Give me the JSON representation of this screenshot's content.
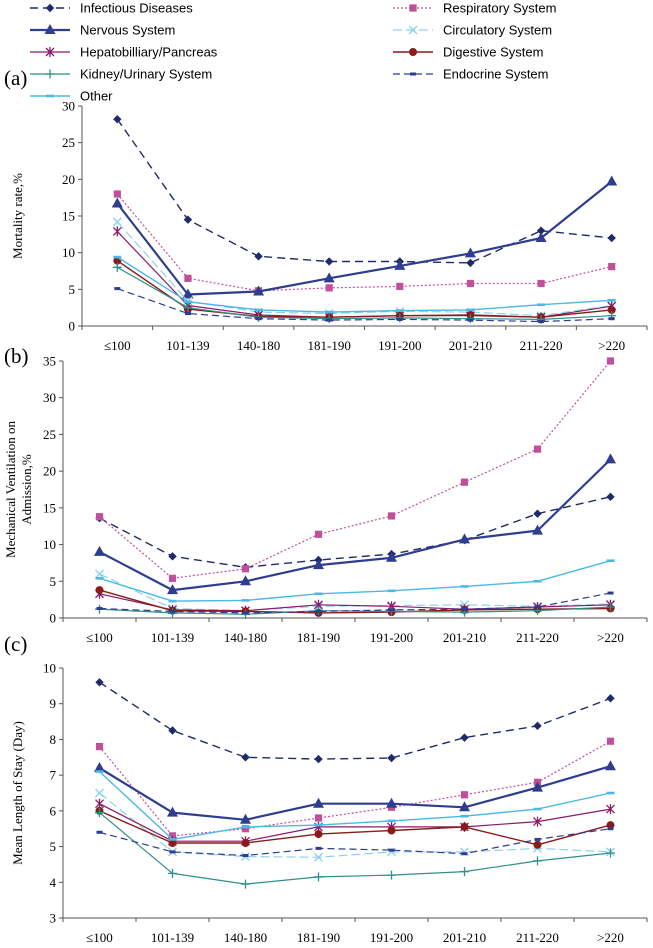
{
  "legend": [
    {
      "key": "infectious",
      "label": "Infectious Diseases"
    },
    {
      "key": "respiratory",
      "label": "Respiratory System"
    },
    {
      "key": "nervous",
      "label": "Nervous System"
    },
    {
      "key": "circulatory",
      "label": "Circulatory System"
    },
    {
      "key": "hepato",
      "label": "Hepatobilliary/Pancreas"
    },
    {
      "key": "digestive",
      "label": "Digestive System"
    },
    {
      "key": "kidney",
      "label": "Kidney/Urinary System"
    },
    {
      "key": "endocrine",
      "label": "Endocrine System"
    },
    {
      "key": "other",
      "label": "Other"
    }
  ],
  "series_styles": {
    "infectious": {
      "color": "#1f2a6b",
      "dash": "8,5",
      "marker": "diamond",
      "width": 1.4
    },
    "respiratory": {
      "color": "#c0509a",
      "dash": "2,2",
      "marker": "square",
      "width": 1.2
    },
    "nervous": {
      "color": "#2e3d8f",
      "dash": "",
      "marker": "triangle",
      "width": 2.2
    },
    "circulatory": {
      "color": "#8fd2e8",
      "dash": "9,4",
      "marker": "x",
      "width": 1.2
    },
    "hepato": {
      "color": "#8b1a6b",
      "dash": "",
      "marker": "star",
      "width": 1.2
    },
    "digestive": {
      "color": "#8b1a1a",
      "dash": "",
      "marker": "circle",
      "width": 1.4
    },
    "kidney": {
      "color": "#2f8f8a",
      "dash": "",
      "marker": "plus",
      "width": 1.2
    },
    "endocrine": {
      "color": "#2e3d8f",
      "dash": "7,4",
      "marker": "dash",
      "width": 1.2
    },
    "other": {
      "color": "#4bb8e6",
      "dash": "",
      "marker": "hbar",
      "width": 1.4
    }
  },
  "chart_data": [
    {
      "type": "line",
      "panel_label": "(a)",
      "ylabel": "Mortality rate,%",
      "categories": [
        "≤100",
        "101-139",
        "140-180",
        "181-190",
        "191-200",
        "201-210",
        "211-220",
        ">220"
      ],
      "ylim": [
        0,
        30
      ],
      "yticks": [
        0,
        5,
        10,
        15,
        20,
        25,
        30
      ],
      "series": [
        {
          "key": "infectious",
          "values": [
            28.2,
            14.5,
            9.5,
            8.8,
            8.8,
            8.6,
            13.0,
            12.0
          ]
        },
        {
          "key": "respiratory",
          "values": [
            18.0,
            6.5,
            4.8,
            5.2,
            5.4,
            5.8,
            5.8,
            8.1
          ]
        },
        {
          "key": "nervous",
          "values": [
            16.7,
            4.3,
            4.7,
            6.5,
            8.2,
            9.9,
            12.0,
            19.7
          ]
        },
        {
          "key": "circulatory",
          "values": [
            14.2,
            3.4,
            1.9,
            1.7,
            2.0,
            1.9,
            1.4,
            2.8
          ]
        },
        {
          "key": "hepato",
          "values": [
            12.9,
            2.8,
            1.5,
            1.2,
            1.4,
            1.4,
            1.2,
            2.7
          ]
        },
        {
          "key": "digestive",
          "values": [
            8.9,
            2.3,
            1.3,
            1.2,
            1.4,
            1.5,
            1.2,
            2.2
          ]
        },
        {
          "key": "kidney",
          "values": [
            8.0,
            2.5,
            1.2,
            1.0,
            1.1,
            1.0,
            0.9,
            1.4
          ]
        },
        {
          "key": "endocrine",
          "values": [
            5.1,
            1.7,
            1.0,
            0.8,
            0.9,
            0.8,
            0.6,
            1.0
          ]
        },
        {
          "key": "other",
          "values": [
            9.4,
            3.3,
            2.2,
            1.9,
            2.1,
            2.2,
            2.9,
            3.5
          ]
        }
      ]
    },
    {
      "type": "line",
      "panel_label": "(b)",
      "ylabel": "Mechanical Ventilation on Admission,%",
      "ylabel_lines": [
        "Mechanical Ventilation on",
        "Admission,%"
      ],
      "categories": [
        "≤100",
        "101-139",
        "140-180",
        "181-190",
        "191-200",
        "201-210",
        "211-220",
        ">220"
      ],
      "ylim": [
        0,
        35
      ],
      "yticks": [
        0,
        5,
        10,
        15,
        20,
        25,
        30,
        35
      ],
      "series": [
        {
          "key": "infectious",
          "values": [
            13.6,
            8.4,
            6.9,
            7.9,
            8.7,
            10.6,
            14.2,
            16.5
          ]
        },
        {
          "key": "respiratory",
          "values": [
            13.8,
            5.4,
            6.7,
            11.4,
            13.9,
            18.5,
            23.0,
            35.0
          ]
        },
        {
          "key": "nervous",
          "values": [
            9.0,
            3.8,
            5.0,
            7.2,
            8.2,
            10.7,
            11.9,
            21.6
          ]
        },
        {
          "key": "circulatory",
          "values": [
            6.0,
            1.3,
            1.0,
            1.6,
            1.7,
            1.8,
            1.6,
            1.9
          ]
        },
        {
          "key": "hepato",
          "values": [
            3.3,
            1.1,
            1.0,
            1.8,
            1.6,
            1.2,
            1.5,
            1.8
          ]
        },
        {
          "key": "digestive",
          "values": [
            3.8,
            1.0,
            0.9,
            0.7,
            0.8,
            1.1,
            1.2,
            1.3
          ]
        },
        {
          "key": "kidney",
          "values": [
            1.2,
            0.7,
            0.5,
            1.0,
            0.9,
            0.8,
            1.0,
            1.5
          ]
        },
        {
          "key": "endocrine",
          "values": [
            1.3,
            0.9,
            0.7,
            0.9,
            1.1,
            1.2,
            1.5,
            3.4
          ]
        },
        {
          "key": "other",
          "values": [
            5.4,
            2.3,
            2.4,
            3.3,
            3.7,
            4.3,
            5.0,
            7.8
          ]
        }
      ]
    },
    {
      "type": "line",
      "panel_label": "(c)",
      "ylabel": "Mean Length of Stay (Day)",
      "categories": [
        "≤100",
        "101-139",
        "140-180",
        "181-190",
        "191-200",
        "201-210",
        "211-220",
        ">220"
      ],
      "ylim": [
        3,
        10
      ],
      "yticks": [
        3,
        4,
        5,
        6,
        7,
        8,
        9,
        10
      ],
      "series": [
        {
          "key": "infectious",
          "values": [
            9.6,
            8.25,
            7.5,
            7.45,
            7.48,
            8.05,
            8.38,
            9.15
          ]
        },
        {
          "key": "respiratory",
          "values": [
            7.8,
            5.3,
            5.5,
            5.8,
            6.1,
            6.45,
            6.8,
            7.95
          ]
        },
        {
          "key": "nervous",
          "values": [
            7.2,
            5.95,
            5.75,
            6.2,
            6.2,
            6.1,
            6.65,
            7.25
          ]
        },
        {
          "key": "circulatory",
          "values": [
            6.5,
            4.85,
            4.72,
            4.7,
            4.85,
            4.85,
            4.95,
            4.85
          ]
        },
        {
          "key": "hepato",
          "values": [
            6.2,
            5.15,
            5.15,
            5.55,
            5.55,
            5.55,
            5.7,
            6.05
          ]
        },
        {
          "key": "digestive",
          "values": [
            6.0,
            5.1,
            5.1,
            5.35,
            5.45,
            5.55,
            5.05,
            5.6
          ]
        },
        {
          "key": "kidney",
          "values": [
            5.95,
            4.25,
            3.95,
            4.15,
            4.2,
            4.3,
            4.6,
            4.82
          ]
        },
        {
          "key": "endocrine",
          "values": [
            5.4,
            4.85,
            4.75,
            4.95,
            4.9,
            4.8,
            5.2,
            5.5
          ]
        },
        {
          "key": "other",
          "values": [
            7.1,
            5.2,
            5.55,
            5.6,
            5.72,
            5.85,
            6.05,
            6.5
          ]
        }
      ]
    }
  ]
}
